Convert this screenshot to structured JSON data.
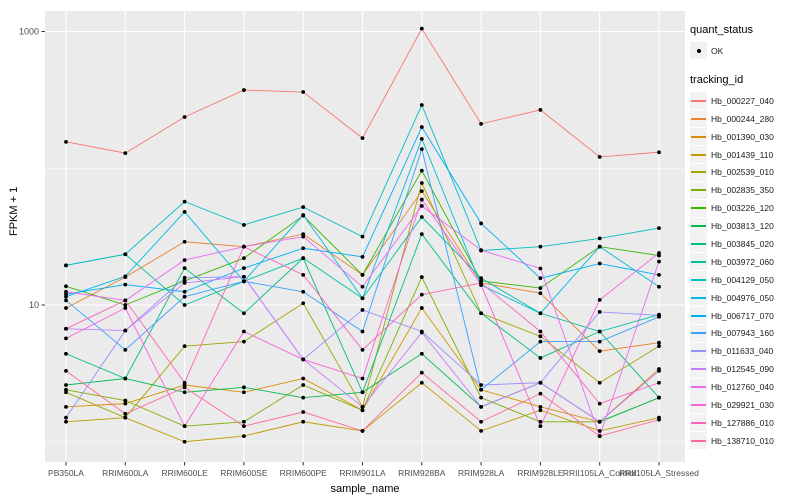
{
  "chart_data": {
    "type": "line",
    "title": "",
    "xlabel": "sample_name",
    "ylabel": "FPKM + 1",
    "y_scale": "log10",
    "ylim": [
      1,
      1100
    ],
    "grid": "on",
    "legend_position": "right",
    "y_tick_values": [
      1000,
      10
    ],
    "y_tick_labels": [
      "1000",
      "10"
    ],
    "y_minor_values": [
      100,
      1
    ],
    "categories": [
      "PB350LA",
      "RRIM600LA",
      "RRIM600LE",
      "RRIM600SE",
      "RRIM600PE",
      "RRIM901LA",
      "RRIM928BA",
      "RRIM928LA",
      "RRIM928LE",
      "RRII105LA_Control",
      "RRII105LA_Stressed"
    ],
    "legend": {
      "quant_status_title": "quant_status",
      "quant_status_items": [
        "OK"
      ],
      "tracking_id_title": "tracking_id"
    },
    "point_color": "#000000",
    "series": [
      {
        "name": "Hb_000227_040",
        "color": "#F8766D",
        "values": [
          156,
          129,
          237,
          373,
          361,
          166,
          1050,
          211,
          267,
          121,
          131
        ]
      },
      {
        "name": "Hb_000244_280",
        "color": "#EA8331",
        "values": [
          9.5,
          16,
          29,
          26.7,
          33,
          16.6,
          68,
          14.5,
          12.2,
          4.6,
          5.3
        ]
      },
      {
        "name": "Hb_001390_030",
        "color": "#D89000",
        "values": [
          1.8,
          1.9,
          2.6,
          2.3,
          2.9,
          1.7,
          9.5,
          2.4,
          1.8,
          1.4,
          3.4
        ]
      },
      {
        "name": "Hb_001439_110",
        "color": "#C09B00",
        "values": [
          1.4,
          1.5,
          1.0,
          1.1,
          1.4,
          1.2,
          2.7,
          1.2,
          1.7,
          1.2,
          1.5
        ]
      },
      {
        "name": "Hb_002539_010",
        "color": "#A3A500",
        "values": [
          2.3,
          1.5,
          5.0,
          5.4,
          10.3,
          1.8,
          78,
          8.7,
          5.9,
          2.7,
          5.0
        ]
      },
      {
        "name": "Hb_002835_350",
        "color": "#7CAE00",
        "values": [
          2.4,
          2.0,
          1.3,
          1.4,
          2.6,
          1.7,
          16,
          2.1,
          1.4,
          1.4,
          2.1
        ]
      },
      {
        "name": "Hb_003226_120",
        "color": "#39B600",
        "values": [
          13.7,
          10,
          15,
          22,
          45,
          16.6,
          96,
          15,
          13.3,
          26.7,
          23
        ]
      },
      {
        "name": "Hb_003813_120",
        "color": "#00BB4E",
        "values": [
          2.6,
          2.9,
          2.3,
          2.5,
          2.1,
          2.3,
          4.4,
          1.8,
          2.7,
          1.4,
          2.1
        ]
      },
      {
        "name": "Hb_003845_020",
        "color": "#00BF7D",
        "values": [
          4.4,
          2.9,
          18.6,
          8.7,
          22,
          2.3,
          33,
          8.7,
          4.1,
          6.4,
          2.1
        ]
      },
      {
        "name": "Hb_003972_060",
        "color": "#00C1A3",
        "values": [
          19.5,
          23.5,
          10,
          14.9,
          22,
          11.2,
          44,
          15.7,
          8.7,
          6.4,
          8.5
        ]
      },
      {
        "name": "Hb_004129_050",
        "color": "#00BFC4",
        "values": [
          19.5,
          23.5,
          57,
          38.5,
          52,
          31.6,
          290,
          25,
          26.7,
          30.7,
          36.5
        ]
      },
      {
        "name": "Hb_004976_050",
        "color": "#00BAE0",
        "values": [
          11.5,
          16.2,
          48,
          14.9,
          45.5,
          11.2,
          164,
          14,
          8.7,
          26.7,
          13.6
        ]
      },
      {
        "name": "Hb_006717_070",
        "color": "#00B0F6",
        "values": [
          12,
          14.1,
          12.5,
          18.6,
          26,
          22.5,
          200,
          39.5,
          15.7,
          20.1,
          16.6
        ]
      },
      {
        "name": "Hb_007943_160",
        "color": "#35A2FF",
        "values": [
          10.8,
          4.7,
          11.5,
          14.9,
          12.5,
          6.4,
          138,
          2.4,
          5.4,
          5.4,
          8.2
        ]
      },
      {
        "name": "Hb_011633_040",
        "color": "#9590FF",
        "values": [
          1.5,
          6.5,
          15.8,
          16.1,
          4.0,
          9.2,
          6.4,
          2.6,
          2.7,
          8.9,
          8.4
        ]
      },
      {
        "name": "Hb_012545_090",
        "color": "#C77CFF",
        "values": [
          6.7,
          6.5,
          14.5,
          16.1,
          4.0,
          1.8,
          6.3,
          1.8,
          2.7,
          1.4,
          3.3
        ]
      },
      {
        "name": "Hb_012760_040",
        "color": "#E76BF3",
        "values": [
          12.5,
          10.8,
          21.3,
          26.7,
          31.6,
          13.6,
          53,
          25.2,
          18.5,
          1.1,
          20.8
        ]
      },
      {
        "name": "Hb_029921_030",
        "color": "#FA62DB",
        "values": [
          5.7,
          9.5,
          1.3,
          6.4,
          4.0,
          2.9,
          59,
          14,
          1.3,
          10.9,
          24
        ]
      },
      {
        "name": "Hb_127886_010",
        "color": "#FF62BC",
        "values": [
          6.7,
          10.8,
          2.7,
          26.7,
          16.6,
          4.7,
          11.9,
          14.5,
          6.4,
          1.9,
          2.7
        ]
      },
      {
        "name": "Hb_138710_010",
        "color": "#FF6A98",
        "values": [
          3.3,
          1.6,
          2.5,
          1.3,
          1.65,
          1.2,
          3.2,
          1.4,
          2.25,
          1.1,
          1.45
        ]
      }
    ]
  },
  "panel": {
    "background": "#EBEBEB",
    "gridline_color": "#FFFFFF",
    "tick_color": "#333333",
    "tick_label_color": "#4D4D4D"
  }
}
